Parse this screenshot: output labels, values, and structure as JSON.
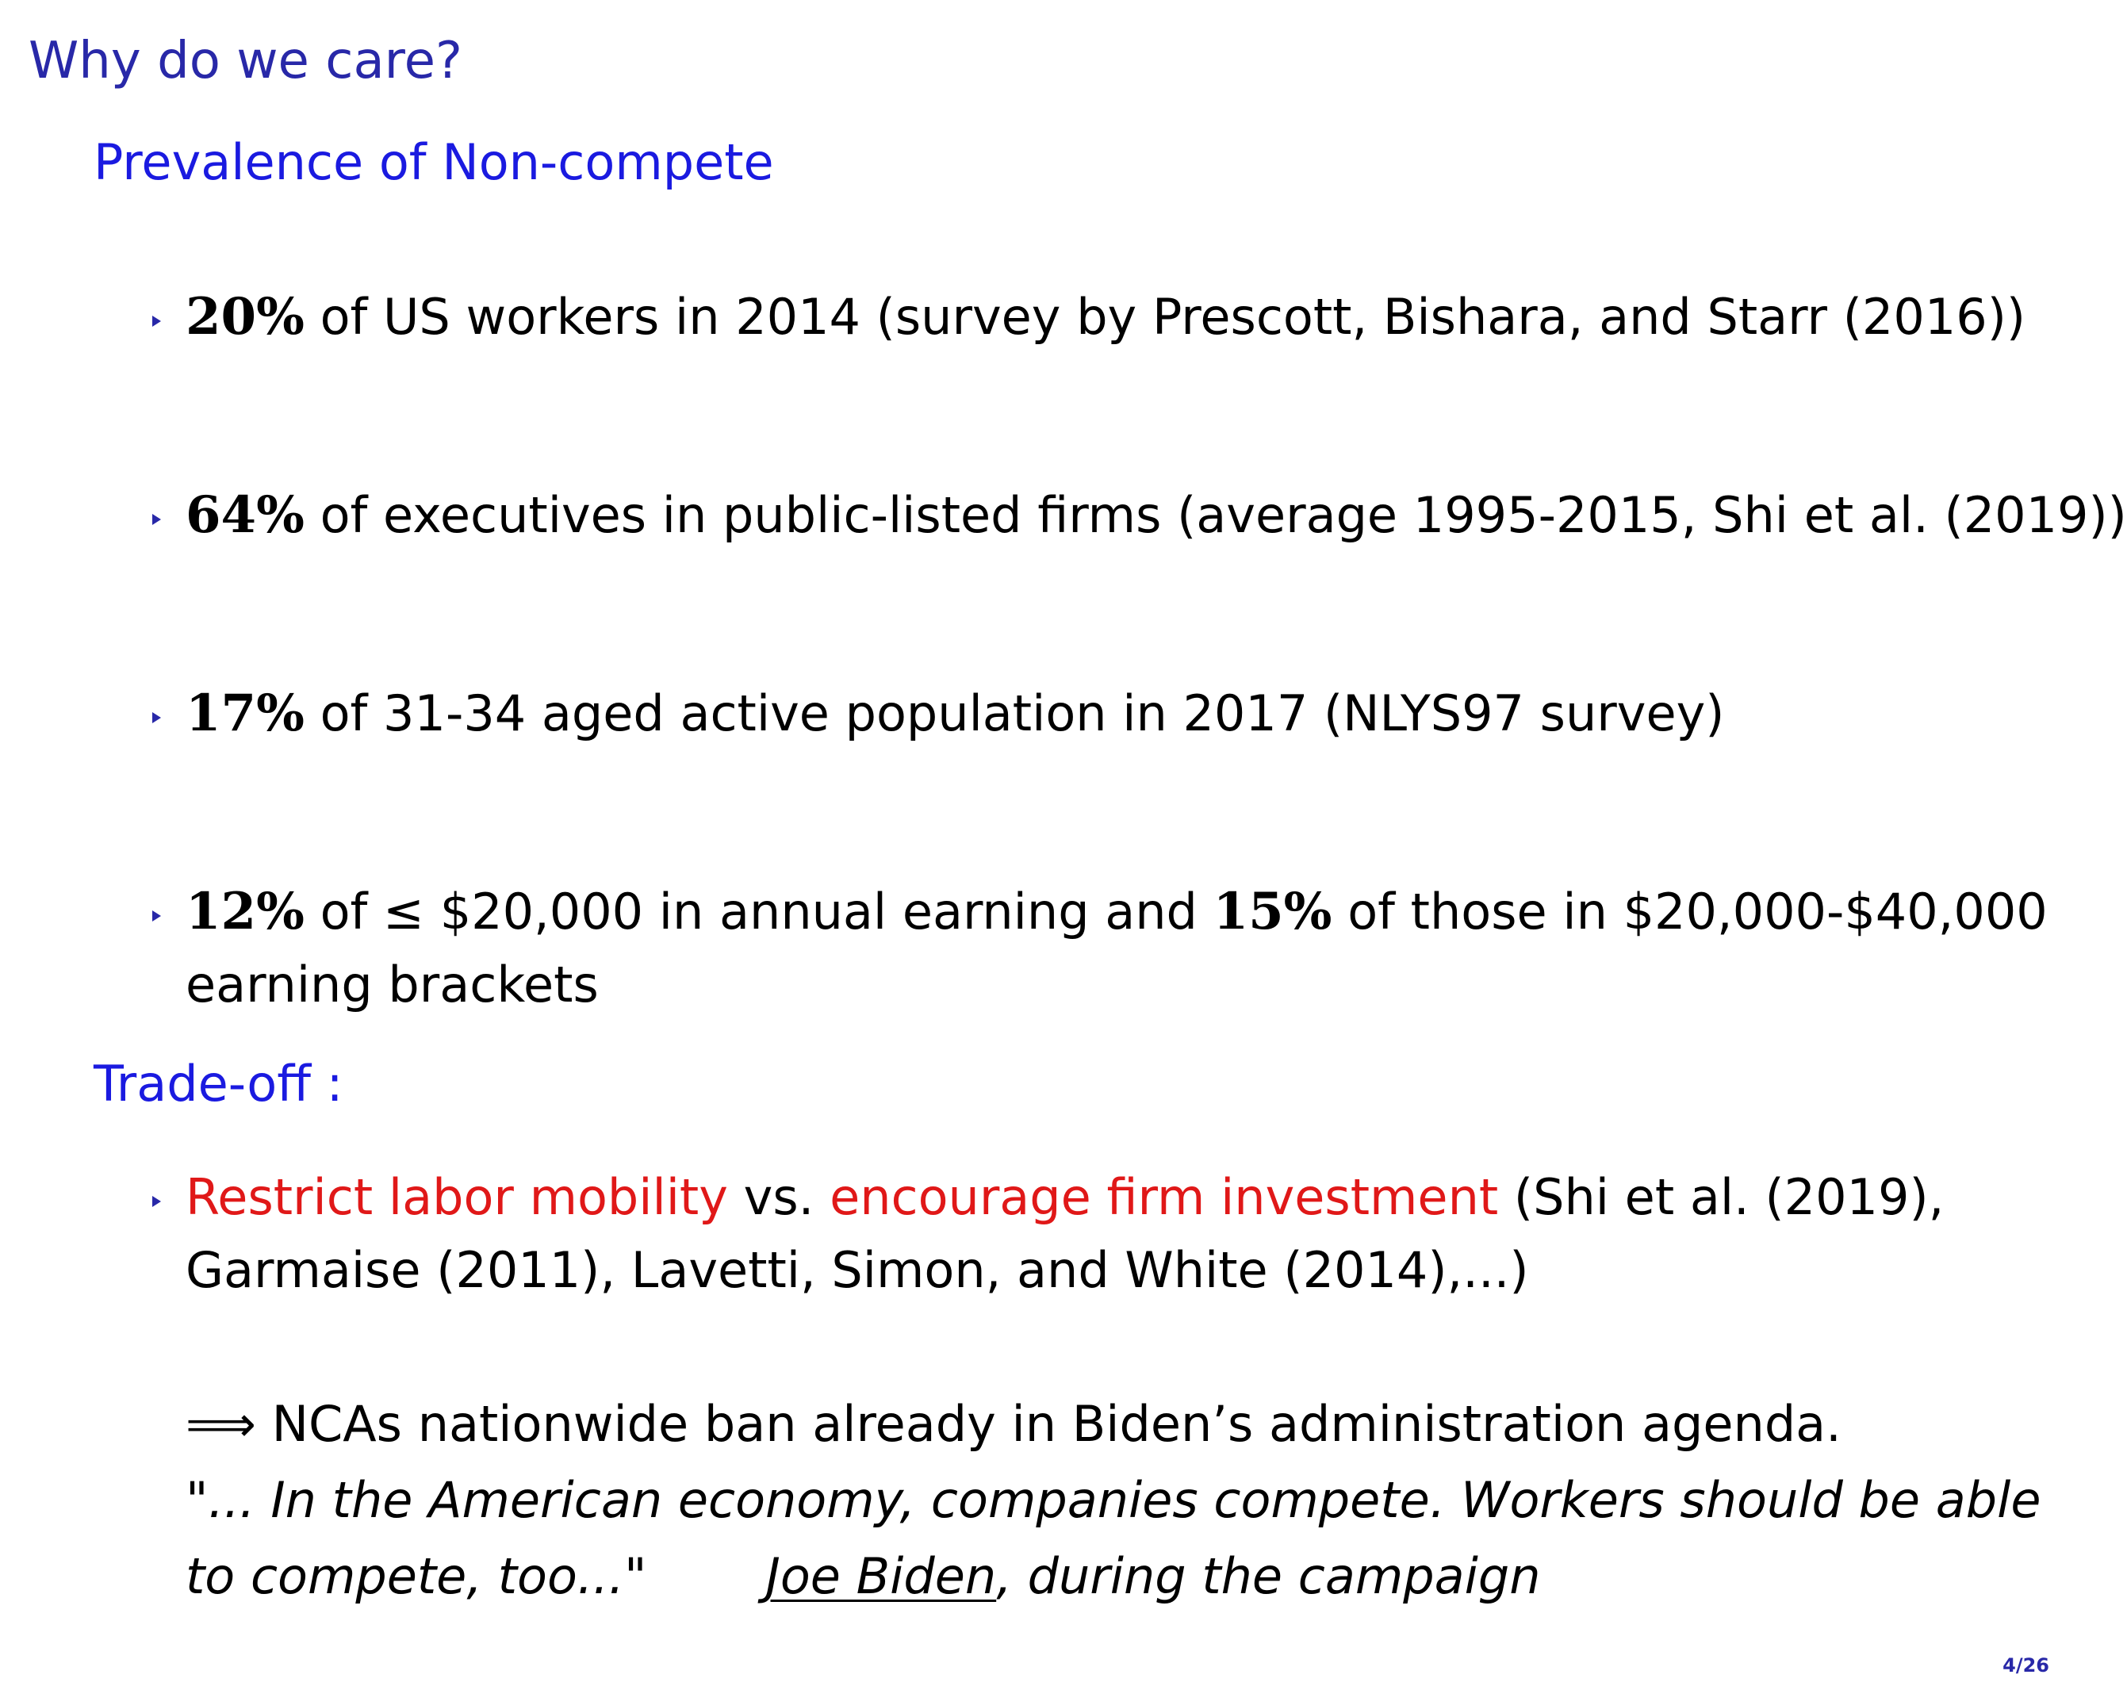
{
  "frame_title": "Why do we care?",
  "prevalence": {
    "title": "Prevalence of Non-compete",
    "items": [
      {
        "value": "20%",
        "text": " of US workers in 2014 (survey by Prescott, Bishara, and Starr (2016))"
      },
      {
        "value": "64%",
        "text": " of executives in public-listed firms (average 1995-2015, Shi et al. (2019))"
      },
      {
        "value": "17%",
        "text": " of 31-34 aged active population in 2017 (NLYS97 survey)"
      },
      {
        "value": "12%",
        "text_a": " of ≤ $20,000 in annual earning and ",
        "value2": "15%",
        "text_b": " of those in $20,000-$40,000",
        "line2": "earning brackets"
      }
    ]
  },
  "tradeoff": {
    "title": "Trade-off :",
    "item": {
      "red1": "Restrict labor mobility",
      "mid": " vs. ",
      "red2": "encourage firm investment",
      "rest": " (Shi et al. (2019),",
      "line2": "Garmaise (2011), Lavetti, Simon, and White (2014),...)"
    },
    "implication": {
      "arrow": "⟹",
      "text": " NCAs nationwide ban already in Biden’s administration agenda."
    },
    "quote": {
      "line1": "\"... In the American economy, companies compete. Workers should be able",
      "line2": "to compete, too...\"",
      "author": "Joe Biden",
      "context": ", during the campaign"
    }
  },
  "page_number": "4/26",
  "colors": {
    "title": "#2828a8",
    "block_title": "#1a1ae0",
    "alert": "#e01818"
  }
}
